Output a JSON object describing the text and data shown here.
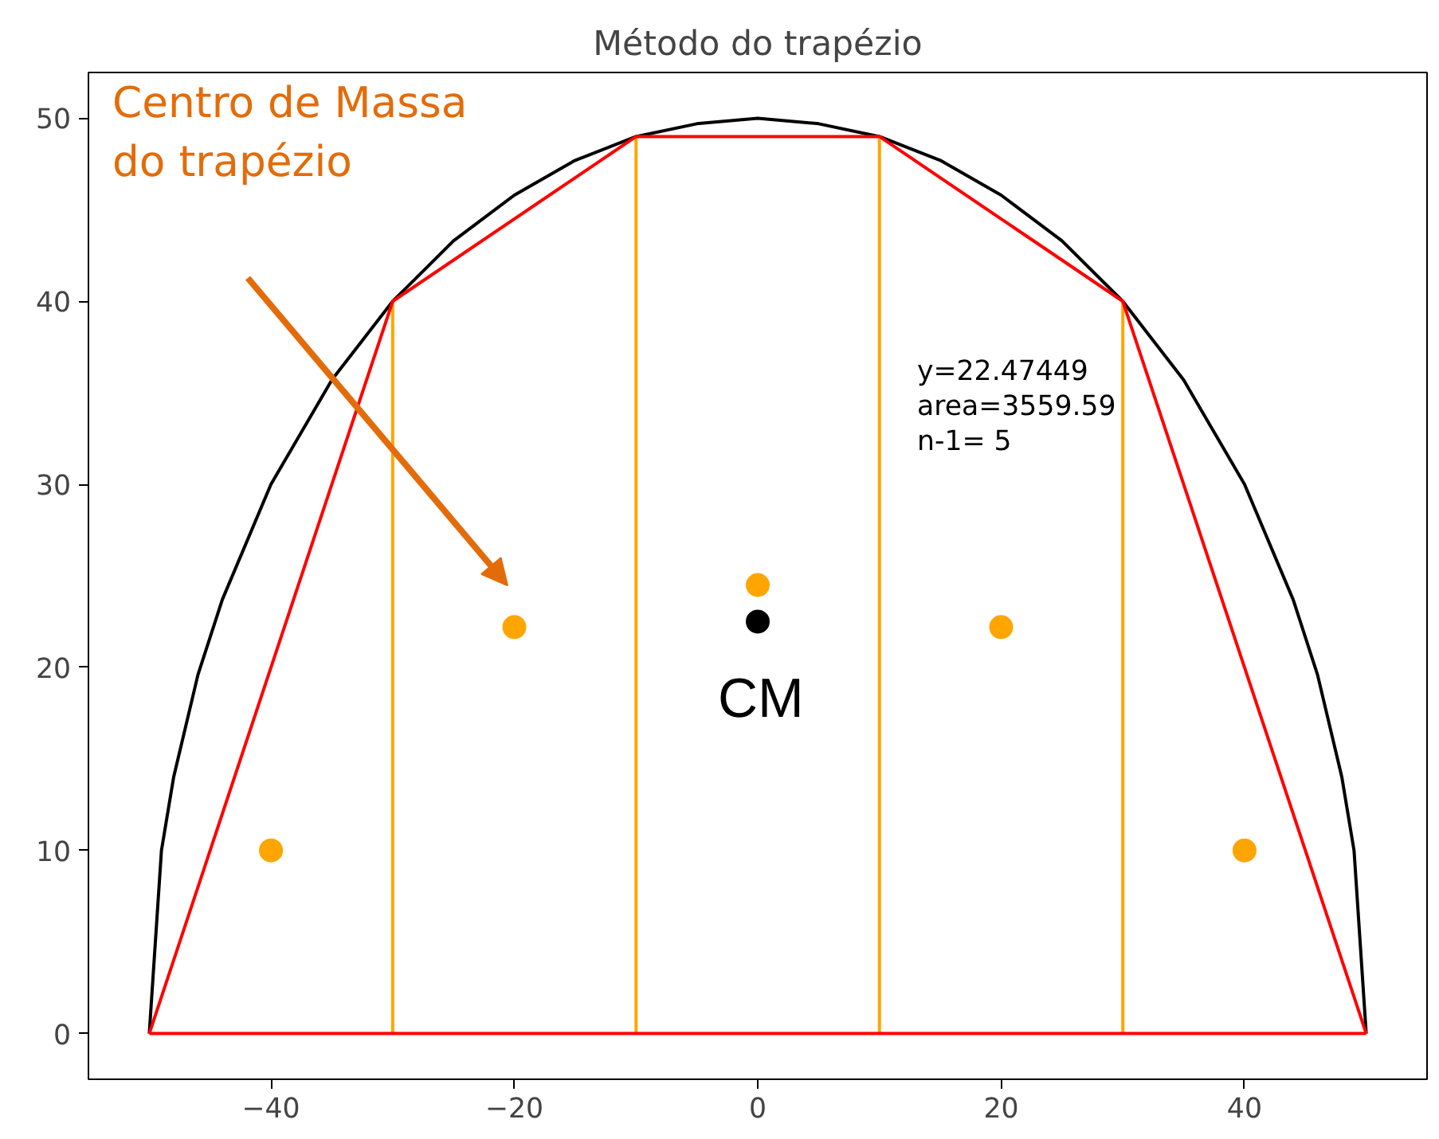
{
  "chart_data": {
    "type": "line",
    "title": "Método do trapézio",
    "xlim": [
      -55,
      55
    ],
    "ylim": [
      -2.5,
      52.5
    ],
    "xticks": [
      {
        "value": -40,
        "label": "−40"
      },
      {
        "value": -20,
        "label": "−20"
      },
      0,
      20,
      40
    ],
    "yticks": [
      0,
      10,
      20,
      30,
      40,
      50
    ],
    "grid": false,
    "series": [
      {
        "color": "#000000",
        "x": [
          -50,
          -49,
          -48,
          -46,
          -44,
          -40,
          -35,
          -30,
          -25,
          -20,
          -15,
          -10,
          -5,
          0,
          5,
          10,
          15,
          20,
          25,
          30,
          35,
          40,
          44,
          46,
          48,
          49,
          50
        ],
        "values": [
          0,
          10,
          14,
          19.6,
          23.7,
          30,
          35.7,
          40,
          43.3,
          45.8,
          47.7,
          49,
          49.7,
          50,
          49.7,
          49,
          47.7,
          45.8,
          43.3,
          40,
          35.7,
          30,
          23.7,
          19.6,
          14,
          10,
          0
        ]
      },
      {
        "color": "#ffa500",
        "x": [
          -30,
          -30,
          null,
          -10,
          -10,
          null,
          10,
          10,
          null,
          30,
          30
        ],
        "values": [
          0,
          40,
          null,
          0,
          49,
          null,
          0,
          49,
          null,
          0,
          40
        ]
      },
      {
        "color": "#ff0000",
        "x": [
          -50,
          -30,
          -10,
          10,
          30,
          50
        ],
        "values": [
          0,
          40,
          49,
          49,
          40,
          0
        ]
      },
      {
        "color": "#ff0000",
        "x": [
          -50,
          50
        ],
        "values": [
          0,
          0
        ]
      },
      {
        "type": "scatter",
        "marker": "circle",
        "color": "#ffa500",
        "x": [
          -40,
          -20,
          0,
          20,
          40
        ],
        "values": [
          10,
          22.2,
          24.5,
          22.2,
          10
        ]
      },
      {
        "type": "scatter",
        "marker": "circle",
        "color": "#000000",
        "x": [
          0
        ],
        "values": [
          22.5
        ]
      }
    ],
    "annotations": [
      "y=22.47449\n area=3559.59\n n-1=       5",
      {
        "text": "CM",
        "x": 0,
        "y": 22.5
      },
      "Centro de Massa\ndo trapézio"
    ]
  }
}
